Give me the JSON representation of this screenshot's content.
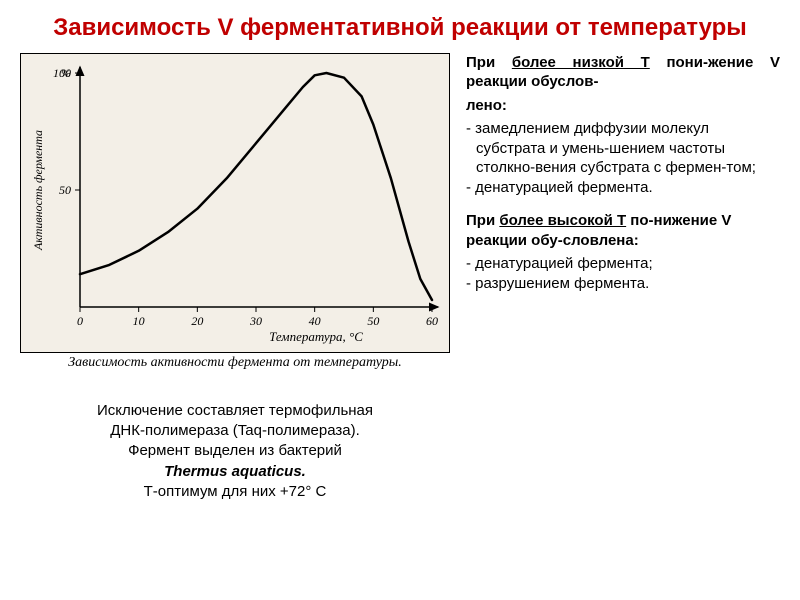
{
  "title": "Зависимость V ферментативной реакции от температуры",
  "chart": {
    "type": "line",
    "background_color": "#f3efe7",
    "axis_color": "#000000",
    "line_color": "#000000",
    "line_width": 2.5,
    "xlabel": "Температура, °С",
    "ylabel": "Активность фермента",
    "y_unit": "%",
    "xlim": [
      0,
      60
    ],
    "ylim": [
      0,
      100
    ],
    "xticks": [
      0,
      10,
      20,
      30,
      40,
      50,
      60
    ],
    "yticks": [
      50,
      100
    ],
    "caption": "Зависимость активности фермента от температуры.",
    "caption_fontsize": 14,
    "data": [
      {
        "x": 0,
        "y": 14
      },
      {
        "x": 5,
        "y": 18
      },
      {
        "x": 10,
        "y": 24
      },
      {
        "x": 15,
        "y": 32
      },
      {
        "x": 20,
        "y": 42
      },
      {
        "x": 25,
        "y": 55
      },
      {
        "x": 30,
        "y": 70
      },
      {
        "x": 35,
        "y": 85
      },
      {
        "x": 38,
        "y": 94
      },
      {
        "x": 40,
        "y": 99
      },
      {
        "x": 42,
        "y": 100
      },
      {
        "x": 45,
        "y": 98
      },
      {
        "x": 48,
        "y": 90
      },
      {
        "x": 50,
        "y": 78
      },
      {
        "x": 53,
        "y": 55
      },
      {
        "x": 56,
        "y": 28
      },
      {
        "x": 58,
        "y": 12
      },
      {
        "x": 60,
        "y": 3
      }
    ]
  },
  "below_chart": {
    "line1": "Исключение составляет термофильная",
    "line2": "ДНК-полимераза (Taq-полимераза).",
    "line3": "Фермент выделен из бактерий",
    "organism": "Thermus aquaticus.",
    "line4": "Т-оптимум для них +72° С"
  },
  "right": {
    "sec1_head_pre": "При ",
    "sec1_head_u": "более низкой Т",
    "sec1_head_post1": " пони-жение V реакции обуслов-",
    "sec1_head_post2": "лено:",
    "sec1_b1": "- замедлением диффузии молекул субстрата и умень-шением частоты столкно-вения субстрата с фермен-том;",
    "sec1_b2": "- денатурацией фермента.",
    "sec2_head_pre": "При ",
    "sec2_head_u": "более высокой Т",
    "sec2_head_post": " по-нижение V реакции обу-словлена:",
    "sec2_b1": "- денатурацией фермента;",
    "sec2_b2": "- разрушением фермента."
  }
}
